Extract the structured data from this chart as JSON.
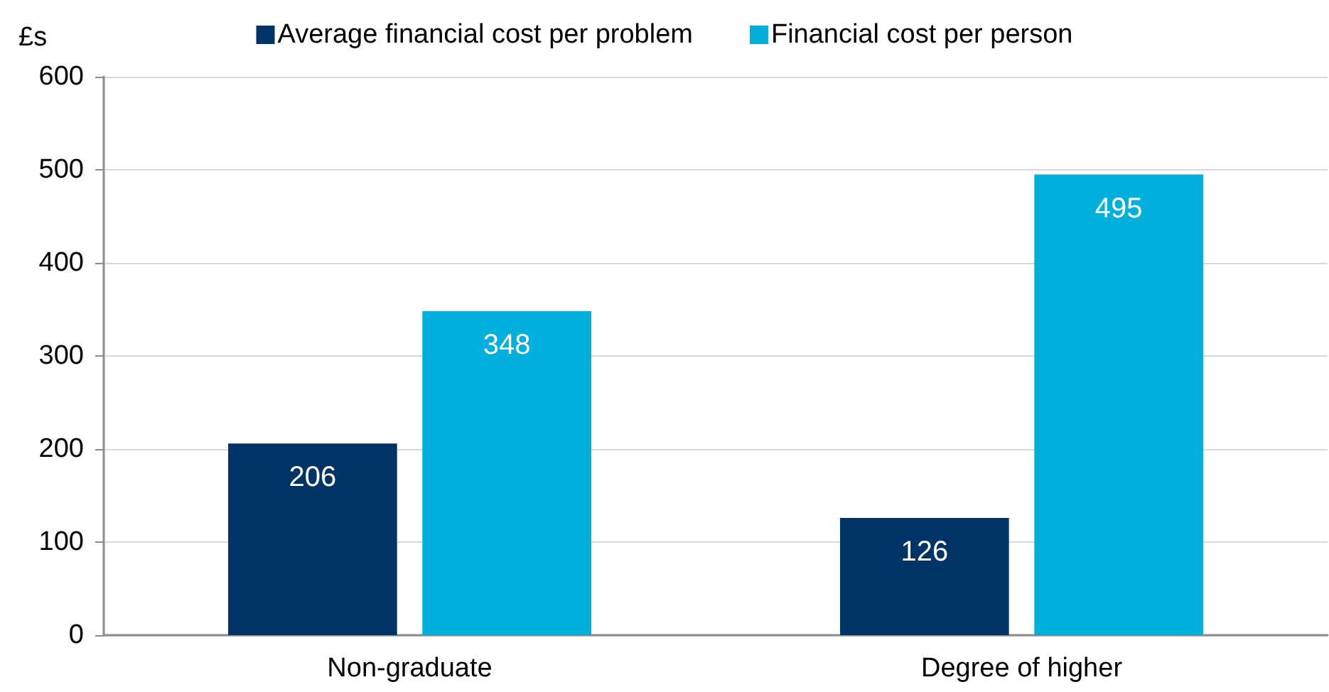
{
  "chart_data": {
    "type": "bar",
    "ylabel": "£s",
    "categories": [
      "Non-graduate",
      "Degree of higher"
    ],
    "series": [
      {
        "name": "Average financial cost per problem",
        "color": "#003366",
        "values": [
          206,
          126
        ]
      },
      {
        "name": "Financial cost per person",
        "color": "#00afdb",
        "values": [
          348,
          495
        ]
      }
    ],
    "ylim": [
      0,
      600
    ],
    "yticks": [
      0,
      100,
      200,
      300,
      400,
      500,
      600
    ],
    "grid": "y",
    "legend": "top",
    "data_labels": true
  }
}
